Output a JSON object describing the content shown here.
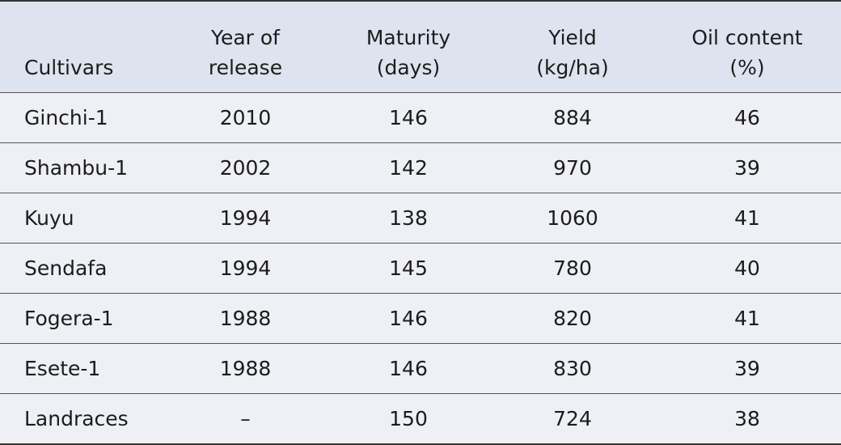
{
  "table": {
    "header": [
      [
        "Cultivars"
      ],
      [
        "Year of",
        "release"
      ],
      [
        "Maturity",
        "(days)"
      ],
      [
        "Yield",
        "(kg/ha)"
      ],
      [
        "Oil content",
        "(%)"
      ]
    ],
    "rows": [
      [
        "Ginchi-1",
        2010,
        146,
        884,
        46
      ],
      [
        "Shambu-1",
        2002,
        142,
        970,
        39
      ],
      [
        "Kuyu",
        1994,
        138,
        1060,
        41
      ],
      [
        "Sendafa",
        1994,
        145,
        780,
        40
      ],
      [
        "Fogera-1",
        1988,
        146,
        820,
        41
      ],
      [
        "Esete-1",
        1988,
        146,
        830,
        39
      ],
      [
        "Landraces",
        "–",
        150,
        724,
        38
      ]
    ]
  }
}
